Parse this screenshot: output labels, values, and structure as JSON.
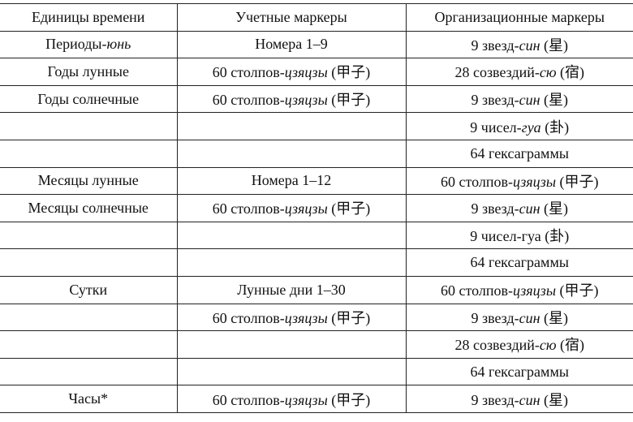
{
  "table": {
    "header": [
      "Единицы времени",
      "Учетные маркеры",
      "Организационные маркеры"
    ],
    "rows": [
      [
        [
          {
            "text": "Периоды-",
            "italic": false
          },
          {
            "text": "юнь",
            "italic": true
          }
        ],
        "Номера 1–9",
        [
          {
            "text": "9 звезд-",
            "italic": false
          },
          {
            "text": "син",
            "italic": true
          },
          {
            "text": " (星)",
            "italic": false
          }
        ]
      ],
      [
        "Годы лунные",
        [
          {
            "text": "60 столпов-",
            "italic": false
          },
          {
            "text": "цзяцзы",
            "italic": true
          },
          {
            "text": " (甲子)",
            "italic": false
          }
        ],
        [
          {
            "text": "28 созвездий-",
            "italic": false
          },
          {
            "text": "сю",
            "italic": true
          },
          {
            "text": " (宿)",
            "italic": false
          }
        ]
      ],
      [
        "Годы солнечные",
        [
          {
            "text": "60 столпов-",
            "italic": false
          },
          {
            "text": "цзяцзы",
            "italic": true
          },
          {
            "text": " (甲子)",
            "italic": false
          }
        ],
        [
          {
            "text": "9 звезд-",
            "italic": false
          },
          {
            "text": "син",
            "italic": true
          },
          {
            "text": " (星)",
            "italic": false
          }
        ]
      ],
      [
        null,
        null,
        [
          {
            "text": "9 чисел-",
            "italic": false
          },
          {
            "text": "гуа",
            "italic": true
          },
          {
            "text": " (卦)",
            "italic": false
          }
        ]
      ],
      [
        null,
        null,
        "64 гексаграммы"
      ],
      [
        "Месяцы лунные",
        "Номера 1–12",
        [
          {
            "text": "60 столпов-",
            "italic": false
          },
          {
            "text": "цзяцзы",
            "italic": true
          },
          {
            "text": " (甲子)",
            "italic": false
          }
        ]
      ],
      [
        "Месяцы солнечные",
        [
          {
            "text": "60 столпов-",
            "italic": false
          },
          {
            "text": "цзяцзы",
            "italic": true
          },
          {
            "text": " (甲子)",
            "italic": false
          }
        ],
        [
          {
            "text": "9 звезд-",
            "italic": false
          },
          {
            "text": "син",
            "italic": true
          },
          {
            "text": " (星)",
            "italic": false
          }
        ]
      ],
      [
        null,
        null,
        "9 чисел-гуа (卦)"
      ],
      [
        null,
        null,
        "64 гексаграммы"
      ],
      [
        "Сутки",
        "Лунные дни 1–30",
        [
          {
            "text": "60 столпов-",
            "italic": false
          },
          {
            "text": "цзяцзы",
            "italic": true
          },
          {
            "text": " (甲子)",
            "italic": false
          }
        ]
      ],
      [
        null,
        [
          {
            "text": "60 столпов-",
            "italic": false
          },
          {
            "text": "цзяцзы",
            "italic": true
          },
          {
            "text": " (甲子)",
            "italic": false
          }
        ],
        [
          {
            "text": "9 звезд-",
            "italic": false
          },
          {
            "text": "син",
            "italic": true
          },
          {
            "text": " (星)",
            "italic": false
          }
        ]
      ],
      [
        null,
        null,
        [
          {
            "text": "28 созвездий-",
            "italic": false
          },
          {
            "text": "сю",
            "italic": true
          },
          {
            "text": " (宿)",
            "italic": false
          }
        ]
      ],
      [
        null,
        null,
        "64 гексаграммы"
      ],
      [
        "Часы*",
        [
          {
            "text": "60 столпов-",
            "italic": false
          },
          {
            "text": "цзяцзы",
            "italic": true
          },
          {
            "text": " (甲子)",
            "italic": false
          }
        ],
        [
          {
            "text": "9 звезд-",
            "italic": false
          },
          {
            "text": "син",
            "italic": true
          },
          {
            "text": " (星)",
            "italic": false
          }
        ]
      ]
    ]
  }
}
